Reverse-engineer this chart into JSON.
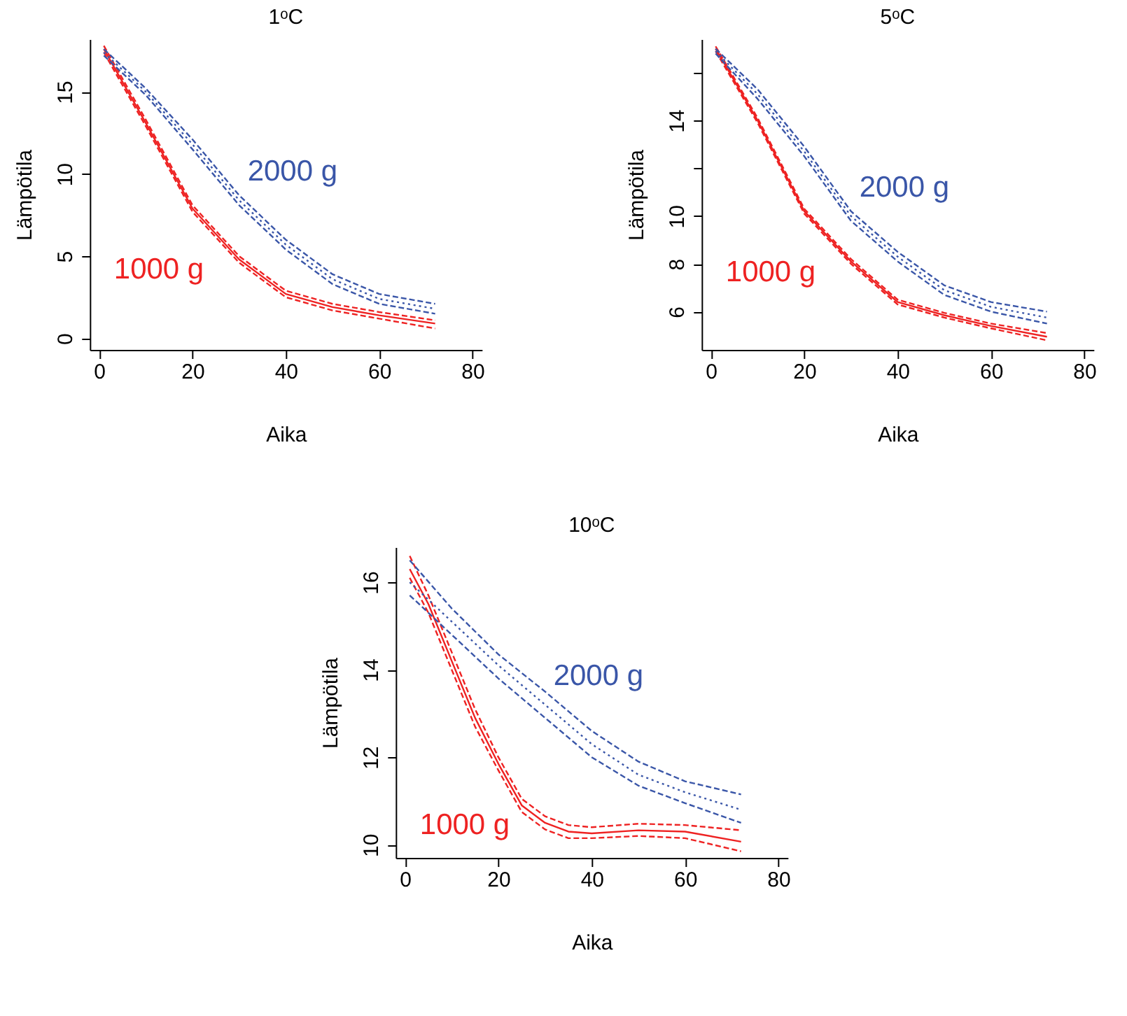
{
  "chart_data": [
    {
      "type": "line",
      "title": "1ᵒC",
      "xlabel": "Aika",
      "ylabel": "Lämpötila",
      "xlim": [
        -2,
        82
      ],
      "ylim": [
        -0.7,
        18.2
      ],
      "xticks": [
        0,
        20,
        40,
        60,
        80
      ],
      "yticks": [
        0,
        5,
        10,
        15
      ],
      "marker": "none",
      "grid": false,
      "x": [
        1,
        10,
        20,
        30,
        40,
        50,
        60,
        72
      ],
      "series": [
        {
          "name": "1000 g",
          "color": "#ee2222",
          "line_style": "solid",
          "values": [
            17.6,
            13.1,
            7.9,
            4.8,
            2.7,
            1.9,
            1.4,
            0.9
          ]
        },
        {
          "color": "#ee2222",
          "line_style": "dashed",
          "values": [
            17.8,
            13.3,
            8.1,
            5.0,
            2.9,
            2.1,
            1.6,
            1.1
          ]
        },
        {
          "color": "#ee2222",
          "line_style": "dashed",
          "values": [
            17.4,
            12.9,
            7.7,
            4.6,
            2.5,
            1.7,
            1.2,
            0.6
          ]
        },
        {
          "name": "2000 g",
          "color": "#3a56a8",
          "line_style": "dotted",
          "values": [
            17.4,
            15.0,
            11.8,
            8.4,
            5.7,
            3.6,
            2.4,
            1.8
          ]
        },
        {
          "color": "#3a56a8",
          "line_style": "dashed",
          "values": [
            17.6,
            15.2,
            12.1,
            8.7,
            6.0,
            3.9,
            2.7,
            2.1
          ]
        },
        {
          "color": "#3a56a8",
          "line_style": "dashed",
          "values": [
            17.2,
            14.8,
            11.5,
            8.1,
            5.4,
            3.3,
            2.1,
            1.5
          ]
        }
      ]
    },
    {
      "type": "line",
      "title": "5ᵒC",
      "xlabel": "Aika",
      "ylabel": "Lämpötila",
      "xlim": [
        -2,
        82
      ],
      "ylim": [
        4.4,
        17.4
      ],
      "xticks": [
        0,
        20,
        40,
        60,
        80
      ],
      "yticks": [
        6,
        8,
        10,
        {
          "value": 12,
          "label": null
        },
        14,
        {
          "value": 16,
          "label": null
        }
      ],
      "marker": "none",
      "grid": false,
      "x": [
        1,
        10,
        20,
        30,
        40,
        50,
        60,
        72
      ],
      "series": [
        {
          "name": "1000 g",
          "color": "#ee2222",
          "line_style": "solid",
          "values": [
            17.0,
            14.0,
            10.2,
            8.1,
            6.4,
            5.85,
            5.4,
            4.95
          ]
        },
        {
          "color": "#ee2222",
          "line_style": "dashed",
          "values": [
            17.1,
            14.1,
            10.3,
            8.2,
            6.5,
            5.95,
            5.5,
            5.1
          ]
        },
        {
          "color": "#ee2222",
          "line_style": "dashed",
          "values": [
            16.9,
            13.9,
            10.1,
            8.0,
            6.3,
            5.75,
            5.3,
            4.8
          ]
        },
        {
          "name": "2000 g",
          "color": "#3a56a8",
          "line_style": "dotted",
          "values": [
            16.9,
            15.1,
            12.7,
            10.0,
            8.3,
            6.9,
            6.2,
            5.75
          ]
        },
        {
          "color": "#3a56a8",
          "line_style": "dashed",
          "values": [
            17.0,
            15.3,
            12.9,
            10.2,
            8.5,
            7.1,
            6.4,
            6.0
          ]
        },
        {
          "color": "#3a56a8",
          "line_style": "dashed",
          "values": [
            16.8,
            14.9,
            12.5,
            9.8,
            8.1,
            6.7,
            6.0,
            5.5
          ]
        }
      ]
    },
    {
      "type": "line",
      "title": "10ᵒC",
      "xlabel": "Aika",
      "ylabel": "Lämpötila",
      "xlim": [
        -2,
        82
      ],
      "ylim": [
        9.7,
        16.8
      ],
      "xticks": [
        0,
        20,
        40,
        60,
        80
      ],
      "yticks": [
        10,
        12,
        14,
        16
      ],
      "marker": "none",
      "grid": false,
      "series": [
        {
          "name": "1000 g",
          "color": "#ee2222",
          "line_style": "solid",
          "x": [
            1,
            5,
            10,
            15,
            20,
            25,
            30,
            35,
            40,
            50,
            60,
            72
          ],
          "values": [
            16.3,
            15.5,
            14.2,
            12.9,
            11.85,
            10.9,
            10.5,
            10.3,
            10.26,
            10.33,
            10.3,
            10.07
          ]
        },
        {
          "color": "#ee2222",
          "line_style": "dashed",
          "x": [
            1,
            5,
            10,
            15,
            20,
            25,
            30,
            35,
            40,
            50,
            60,
            72
          ],
          "values": [
            16.6,
            15.7,
            14.4,
            13.1,
            12.0,
            11.05,
            10.65,
            10.45,
            10.4,
            10.48,
            10.45,
            10.33
          ]
        },
        {
          "color": "#ee2222",
          "line_style": "dashed",
          "x": [
            1,
            5,
            10,
            15,
            20,
            25,
            30,
            35,
            40,
            50,
            60,
            72
          ],
          "values": [
            16.1,
            15.3,
            14.0,
            12.7,
            11.7,
            10.75,
            10.35,
            10.15,
            10.15,
            10.2,
            10.15,
            9.85
          ]
        },
        {
          "name": "2000 g",
          "color": "#3a56a8",
          "line_style": "dotted",
          "x": [
            1,
            10,
            20,
            30,
            40,
            50,
            60,
            72
          ],
          "values": [
            16.0,
            15.1,
            14.1,
            13.2,
            12.3,
            11.6,
            11.2,
            10.8
          ]
        },
        {
          "color": "#3a56a8",
          "line_style": "dashed",
          "x": [
            1,
            10,
            20,
            30,
            40,
            50,
            60,
            72
          ],
          "values": [
            16.5,
            15.4,
            14.35,
            13.5,
            12.6,
            11.9,
            11.45,
            11.15
          ]
        },
        {
          "color": "#3a56a8",
          "line_style": "dashed",
          "x": [
            1,
            10,
            20,
            30,
            40,
            50,
            60,
            72
          ],
          "values": [
            15.7,
            14.8,
            13.8,
            12.9,
            12.0,
            11.35,
            10.95,
            10.5
          ]
        }
      ]
    }
  ]
}
